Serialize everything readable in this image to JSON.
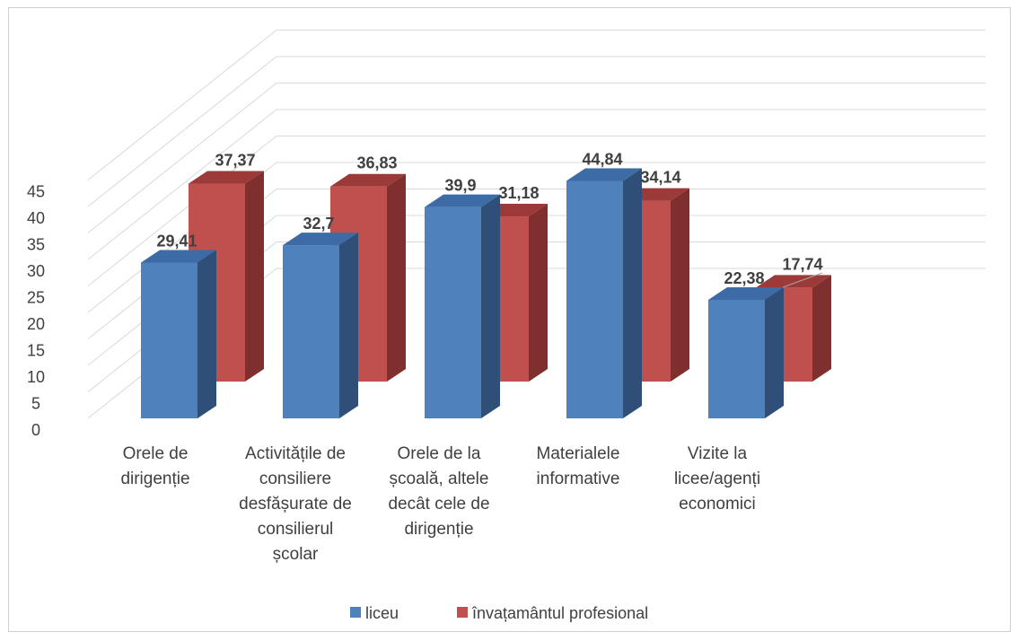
{
  "chart_data": {
    "type": "bar",
    "categories": [
      [
        "Orele de",
        "dirigenție"
      ],
      [
        "Activitățile de",
        "consiliere",
        "desfășurate de",
        "consilierul",
        "școlar"
      ],
      [
        "Orele de  la",
        "școală, altele",
        "decât cele de",
        "dirigenție"
      ],
      [
        "Materialele",
        "informative"
      ],
      [
        "Vizite la",
        "licee/agenți",
        "economici"
      ]
    ],
    "series": [
      {
        "name": "liceu",
        "values": [
          29.41,
          32.7,
          39.9,
          44.84,
          22.38
        ],
        "labels": [
          "29,41",
          "32,7",
          "39,9",
          "44,84",
          "22,38"
        ]
      },
      {
        "name": "învațamântul profesional",
        "values": [
          37.37,
          36.83,
          31.18,
          34.14,
          17.74
        ],
        "labels": [
          "37,37",
          "36,83",
          "31,18",
          "34,14",
          "17,74"
        ]
      }
    ],
    "ylim": [
      0,
      45
    ],
    "yticks": [
      "0",
      "5",
      "10",
      "15",
      "20",
      "25",
      "30",
      "35",
      "40",
      "45"
    ],
    "grid": true,
    "legend_position": "bottom",
    "colors": {
      "liceu": "#4f81bd",
      "liceu_side": "#2f4f78",
      "liceu_top": "#3d6ba6",
      "profesional": "#c0504d",
      "profesional_side": "#7f2f2d",
      "profesional_top": "#9b3a38",
      "grid": "#d9d9d9",
      "text": "#404040"
    }
  }
}
